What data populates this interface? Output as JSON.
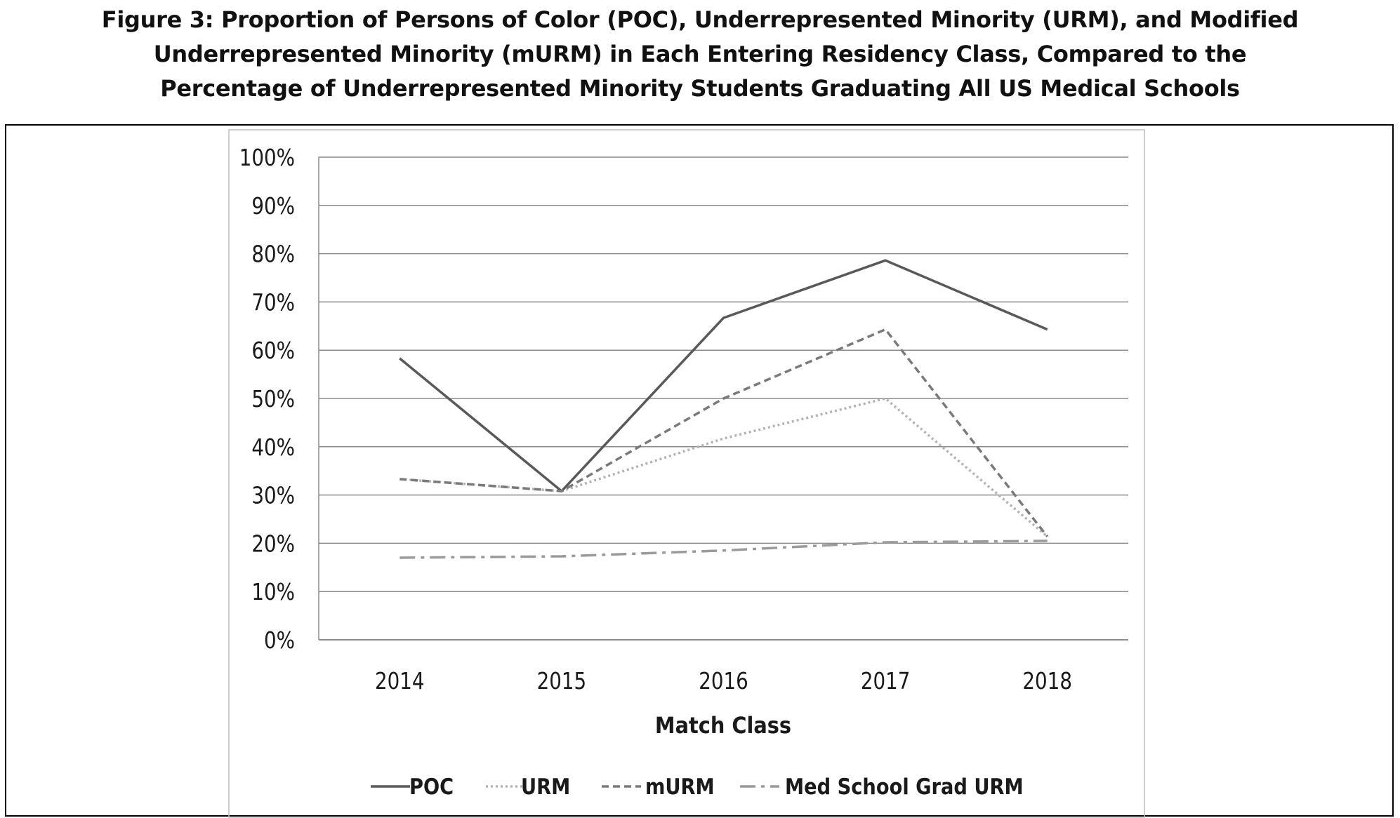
{
  "figure": {
    "title_lines": [
      "Figure 3: Proportion of Persons of Color (POC), Underrepresented Minority (URM), and Modified",
      "Underrepresented Minority (mURM) in Each Entering Residency Class, Compared to the",
      "Percentage of Underrepresented Minority Students Graduating All US Medical Schools"
    ]
  },
  "chart_data": {
    "type": "line",
    "title": "",
    "xlabel": "Match Class",
    "ylabel": "",
    "categories": [
      "2014",
      "2015",
      "2016",
      "2017",
      "2018"
    ],
    "ylim": [
      0,
      1
    ],
    "yticks": [
      0,
      0.1,
      0.2,
      0.3,
      0.4,
      0.5,
      0.6,
      0.7,
      0.8,
      0.9,
      1.0
    ],
    "ytick_labels": [
      "0%",
      "10%",
      "20%",
      "30%",
      "40%",
      "50%",
      "60%",
      "70%",
      "80%",
      "90%",
      "100%"
    ],
    "grid": true,
    "legend_position": "bottom",
    "series": [
      {
        "name": "POC",
        "values": [
          0.583,
          0.308,
          0.667,
          0.786,
          0.643
        ],
        "color": "#595959",
        "style": "solid"
      },
      {
        "name": "URM",
        "values": [
          0.333,
          0.308,
          0.417,
          0.5,
          0.214
        ],
        "color": "#b3b3b3",
        "style": "dotted"
      },
      {
        "name": "mURM",
        "values": [
          0.333,
          0.308,
          0.5,
          0.643,
          0.214
        ],
        "color": "#7a7a7a",
        "style": "dashed"
      },
      {
        "name": "Med School Grad URM",
        "values": [
          0.17,
          0.173,
          0.185,
          0.202,
          0.205
        ],
        "color": "#9a9a9a",
        "style": "dashdot"
      }
    ]
  }
}
